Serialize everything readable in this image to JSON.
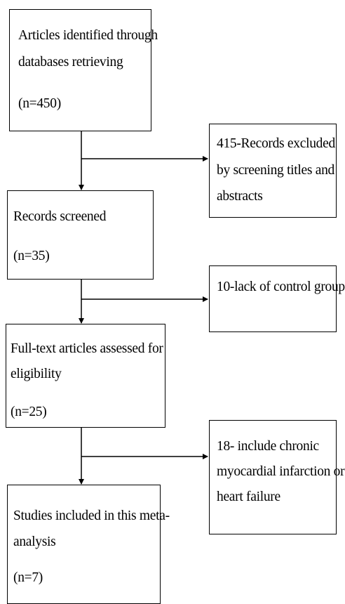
{
  "boxes": {
    "identified": {
      "line1": "Articles identified through",
      "line2": "databases retrieving",
      "count": "(n=450)"
    },
    "excluded_screening": {
      "line1": "415-Records excluded",
      "line2": "by screening titles and",
      "line3": "abstracts"
    },
    "screened": {
      "line1": "Records screened",
      "count": "(n=35)"
    },
    "lack_control": {
      "line1": "10-lack of control group"
    },
    "fulltext": {
      "line1": "Full-text articles assessed for",
      "line2": "eligibility",
      "count": "(n=25)"
    },
    "chronic_mi": {
      "line1": "18- include chronic",
      "line2": "myocardial infarction or",
      "line3": "heart failure"
    },
    "included": {
      "line1": "Studies included in this meta-",
      "line2": "analysis",
      "count": "(n=7)"
    }
  },
  "colors": {
    "line": "#000000",
    "background": "#ffffff"
  }
}
